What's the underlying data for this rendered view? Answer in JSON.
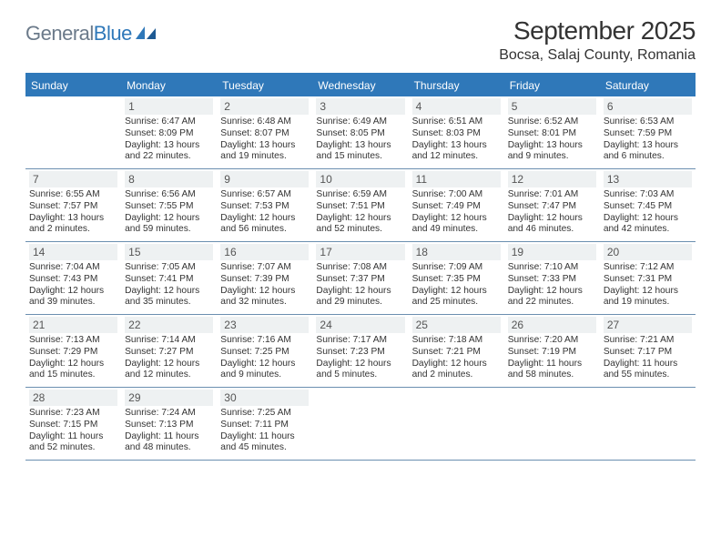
{
  "brand": {
    "word1": "General",
    "word2": "Blue"
  },
  "title": "September 2025",
  "location": "Bocsa, Salaj County, Romania",
  "colors": {
    "header_bg": "#2f78b9",
    "header_text": "#ffffff",
    "daynum_bg": "#eef1f2",
    "daynum_text": "#555555",
    "week_border": "#6b8fb0",
    "body_text": "#333333",
    "logo_gray": "#6b7a8a",
    "logo_blue": "#2f78b9",
    "page_bg": "#ffffff"
  },
  "typography": {
    "title_fontsize": 28,
    "location_fontsize": 16,
    "dow_fontsize": 12,
    "daynum_fontsize": 12,
    "line_fontsize": 10.2
  },
  "dow": [
    "Sunday",
    "Monday",
    "Tuesday",
    "Wednesday",
    "Thursday",
    "Friday",
    "Saturday"
  ],
  "weeks": [
    [
      null,
      {
        "n": "1",
        "sr": "Sunrise: 6:47 AM",
        "ss": "Sunset: 8:09 PM",
        "d1": "Daylight: 13 hours",
        "d2": "and 22 minutes."
      },
      {
        "n": "2",
        "sr": "Sunrise: 6:48 AM",
        "ss": "Sunset: 8:07 PM",
        "d1": "Daylight: 13 hours",
        "d2": "and 19 minutes."
      },
      {
        "n": "3",
        "sr": "Sunrise: 6:49 AM",
        "ss": "Sunset: 8:05 PM",
        "d1": "Daylight: 13 hours",
        "d2": "and 15 minutes."
      },
      {
        "n": "4",
        "sr": "Sunrise: 6:51 AM",
        "ss": "Sunset: 8:03 PM",
        "d1": "Daylight: 13 hours",
        "d2": "and 12 minutes."
      },
      {
        "n": "5",
        "sr": "Sunrise: 6:52 AM",
        "ss": "Sunset: 8:01 PM",
        "d1": "Daylight: 13 hours",
        "d2": "and 9 minutes."
      },
      {
        "n": "6",
        "sr": "Sunrise: 6:53 AM",
        "ss": "Sunset: 7:59 PM",
        "d1": "Daylight: 13 hours",
        "d2": "and 6 minutes."
      }
    ],
    [
      {
        "n": "7",
        "sr": "Sunrise: 6:55 AM",
        "ss": "Sunset: 7:57 PM",
        "d1": "Daylight: 13 hours",
        "d2": "and 2 minutes."
      },
      {
        "n": "8",
        "sr": "Sunrise: 6:56 AM",
        "ss": "Sunset: 7:55 PM",
        "d1": "Daylight: 12 hours",
        "d2": "and 59 minutes."
      },
      {
        "n": "9",
        "sr": "Sunrise: 6:57 AM",
        "ss": "Sunset: 7:53 PM",
        "d1": "Daylight: 12 hours",
        "d2": "and 56 minutes."
      },
      {
        "n": "10",
        "sr": "Sunrise: 6:59 AM",
        "ss": "Sunset: 7:51 PM",
        "d1": "Daylight: 12 hours",
        "d2": "and 52 minutes."
      },
      {
        "n": "11",
        "sr": "Sunrise: 7:00 AM",
        "ss": "Sunset: 7:49 PM",
        "d1": "Daylight: 12 hours",
        "d2": "and 49 minutes."
      },
      {
        "n": "12",
        "sr": "Sunrise: 7:01 AM",
        "ss": "Sunset: 7:47 PM",
        "d1": "Daylight: 12 hours",
        "d2": "and 46 minutes."
      },
      {
        "n": "13",
        "sr": "Sunrise: 7:03 AM",
        "ss": "Sunset: 7:45 PM",
        "d1": "Daylight: 12 hours",
        "d2": "and 42 minutes."
      }
    ],
    [
      {
        "n": "14",
        "sr": "Sunrise: 7:04 AM",
        "ss": "Sunset: 7:43 PM",
        "d1": "Daylight: 12 hours",
        "d2": "and 39 minutes."
      },
      {
        "n": "15",
        "sr": "Sunrise: 7:05 AM",
        "ss": "Sunset: 7:41 PM",
        "d1": "Daylight: 12 hours",
        "d2": "and 35 minutes."
      },
      {
        "n": "16",
        "sr": "Sunrise: 7:07 AM",
        "ss": "Sunset: 7:39 PM",
        "d1": "Daylight: 12 hours",
        "d2": "and 32 minutes."
      },
      {
        "n": "17",
        "sr": "Sunrise: 7:08 AM",
        "ss": "Sunset: 7:37 PM",
        "d1": "Daylight: 12 hours",
        "d2": "and 29 minutes."
      },
      {
        "n": "18",
        "sr": "Sunrise: 7:09 AM",
        "ss": "Sunset: 7:35 PM",
        "d1": "Daylight: 12 hours",
        "d2": "and 25 minutes."
      },
      {
        "n": "19",
        "sr": "Sunrise: 7:10 AM",
        "ss": "Sunset: 7:33 PM",
        "d1": "Daylight: 12 hours",
        "d2": "and 22 minutes."
      },
      {
        "n": "20",
        "sr": "Sunrise: 7:12 AM",
        "ss": "Sunset: 7:31 PM",
        "d1": "Daylight: 12 hours",
        "d2": "and 19 minutes."
      }
    ],
    [
      {
        "n": "21",
        "sr": "Sunrise: 7:13 AM",
        "ss": "Sunset: 7:29 PM",
        "d1": "Daylight: 12 hours",
        "d2": "and 15 minutes."
      },
      {
        "n": "22",
        "sr": "Sunrise: 7:14 AM",
        "ss": "Sunset: 7:27 PM",
        "d1": "Daylight: 12 hours",
        "d2": "and 12 minutes."
      },
      {
        "n": "23",
        "sr": "Sunrise: 7:16 AM",
        "ss": "Sunset: 7:25 PM",
        "d1": "Daylight: 12 hours",
        "d2": "and 9 minutes."
      },
      {
        "n": "24",
        "sr": "Sunrise: 7:17 AM",
        "ss": "Sunset: 7:23 PM",
        "d1": "Daylight: 12 hours",
        "d2": "and 5 minutes."
      },
      {
        "n": "25",
        "sr": "Sunrise: 7:18 AM",
        "ss": "Sunset: 7:21 PM",
        "d1": "Daylight: 12 hours",
        "d2": "and 2 minutes."
      },
      {
        "n": "26",
        "sr": "Sunrise: 7:20 AM",
        "ss": "Sunset: 7:19 PM",
        "d1": "Daylight: 11 hours",
        "d2": "and 58 minutes."
      },
      {
        "n": "27",
        "sr": "Sunrise: 7:21 AM",
        "ss": "Sunset: 7:17 PM",
        "d1": "Daylight: 11 hours",
        "d2": "and 55 minutes."
      }
    ],
    [
      {
        "n": "28",
        "sr": "Sunrise: 7:23 AM",
        "ss": "Sunset: 7:15 PM",
        "d1": "Daylight: 11 hours",
        "d2": "and 52 minutes."
      },
      {
        "n": "29",
        "sr": "Sunrise: 7:24 AM",
        "ss": "Sunset: 7:13 PM",
        "d1": "Daylight: 11 hours",
        "d2": "and 48 minutes."
      },
      {
        "n": "30",
        "sr": "Sunrise: 7:25 AM",
        "ss": "Sunset: 7:11 PM",
        "d1": "Daylight: 11 hours",
        "d2": "and 45 minutes."
      },
      null,
      null,
      null,
      null
    ]
  ]
}
